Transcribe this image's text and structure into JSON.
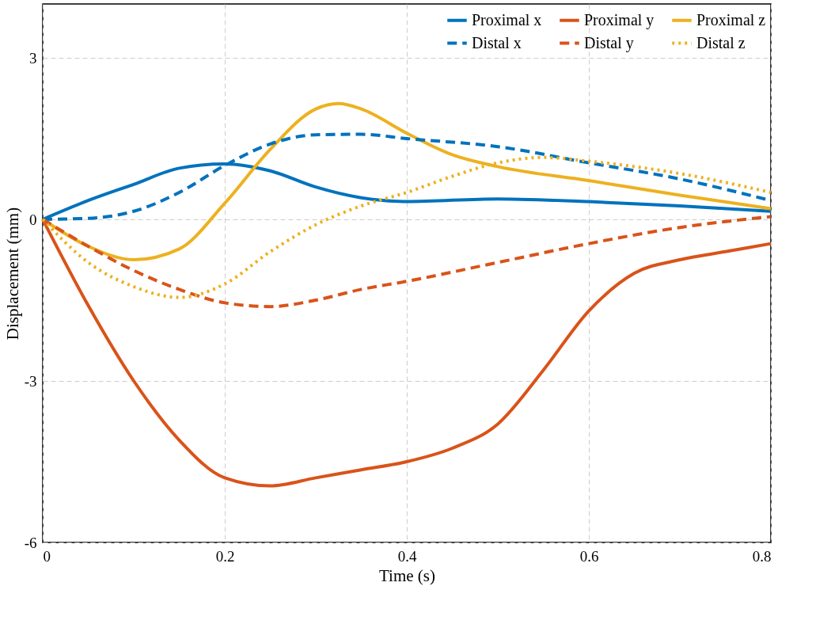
{
  "chart_data": {
    "type": "line",
    "xlabel": "Time (s)",
    "ylabel": "Displacement (mm)",
    "xlim": [
      0,
      0.8
    ],
    "xticks": [
      0,
      0.2,
      0.4,
      0.6,
      0.8
    ],
    "ylim": [
      -6,
      4
    ],
    "yticks": [
      -6,
      -3,
      0,
      3
    ],
    "grid": true,
    "legend": "top right",
    "series": [
      {
        "name": "Proximal x",
        "color": "#0072bd",
        "line_style": "solid",
        "x": [
          0,
          0.05,
          0.1,
          0.15,
          0.2,
          0.25,
          0.3,
          0.35,
          0.4,
          0.5,
          0.6,
          0.7,
          0.8
        ],
        "values": [
          0,
          0.35,
          0.65,
          0.95,
          1.03,
          0.9,
          0.6,
          0.4,
          0.33,
          0.38,
          0.33,
          0.25,
          0.15
        ]
      },
      {
        "name": "Proximal y",
        "color": "#d95319",
        "line_style": "solid",
        "x": [
          0,
          0.05,
          0.1,
          0.15,
          0.2,
          0.25,
          0.3,
          0.35,
          0.4,
          0.45,
          0.5,
          0.55,
          0.6,
          0.65,
          0.7,
          0.75,
          0.8
        ],
        "values": [
          0,
          -1.6,
          -3.0,
          -4.1,
          -4.8,
          -4.95,
          -4.8,
          -4.65,
          -4.5,
          -4.25,
          -3.8,
          -2.8,
          -1.7,
          -1.0,
          -0.75,
          -0.6,
          -0.45
        ]
      },
      {
        "name": "Proximal z",
        "color": "#edb120",
        "line_style": "solid",
        "x": [
          0,
          0.05,
          0.1,
          0.15,
          0.2,
          0.25,
          0.3,
          0.325,
          0.35,
          0.4,
          0.45,
          0.5,
          0.6,
          0.7,
          0.8
        ],
        "values": [
          0,
          -0.5,
          -0.75,
          -0.55,
          0.3,
          1.3,
          2.05,
          2.15,
          2.05,
          1.6,
          1.2,
          0.98,
          0.72,
          0.45,
          0.2
        ]
      },
      {
        "name": "Distal x",
        "color": "#0072bd",
        "line_style": "dashed",
        "x": [
          0,
          0.05,
          0.1,
          0.15,
          0.2,
          0.25,
          0.3,
          0.35,
          0.4,
          0.5,
          0.6,
          0.7,
          0.8
        ],
        "values": [
          0,
          0.02,
          0.15,
          0.5,
          1.0,
          1.4,
          1.57,
          1.58,
          1.5,
          1.35,
          1.05,
          0.75,
          0.35
        ]
      },
      {
        "name": "Distal y",
        "color": "#d95319",
        "line_style": "dashed",
        "x": [
          0,
          0.05,
          0.1,
          0.15,
          0.2,
          0.25,
          0.3,
          0.35,
          0.4,
          0.5,
          0.6,
          0.7,
          0.8
        ],
        "values": [
          0,
          -0.5,
          -0.95,
          -1.3,
          -1.55,
          -1.62,
          -1.5,
          -1.3,
          -1.15,
          -0.8,
          -0.45,
          -0.15,
          0.05
        ]
      },
      {
        "name": "Distal z",
        "color": "#edb120",
        "line_style": "dotted",
        "x": [
          0,
          0.05,
          0.1,
          0.15,
          0.2,
          0.25,
          0.3,
          0.35,
          0.4,
          0.45,
          0.5,
          0.55,
          0.6,
          0.7,
          0.8
        ],
        "values": [
          0,
          -0.8,
          -1.25,
          -1.45,
          -1.2,
          -0.6,
          -0.1,
          0.25,
          0.5,
          0.8,
          1.05,
          1.15,
          1.08,
          0.85,
          0.5
        ]
      }
    ]
  }
}
